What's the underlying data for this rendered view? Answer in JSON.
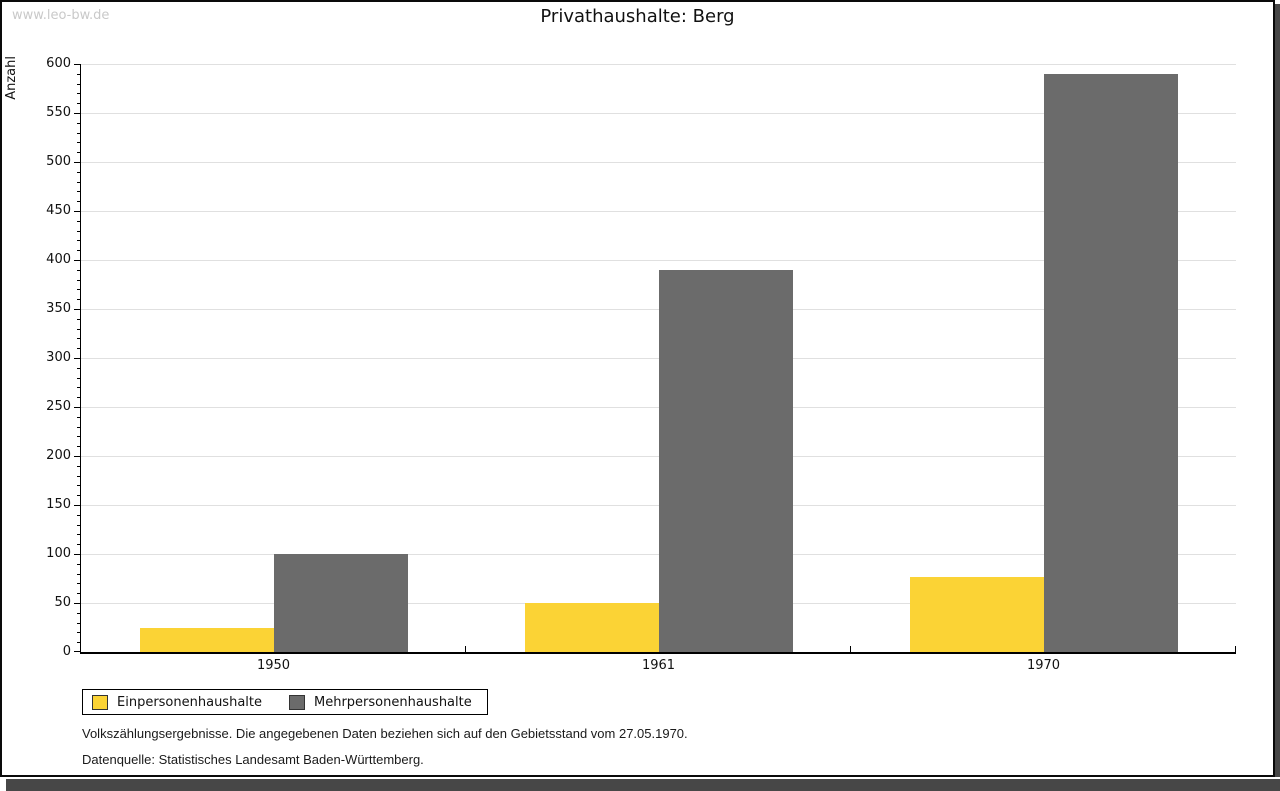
{
  "watermark": "www.leo-bw.de",
  "title": "Privathaushalte: Berg",
  "chart_data": {
    "type": "bar",
    "title": "Privathaushalte: Berg",
    "xlabel": "",
    "ylabel": "Anzahl",
    "categories": [
      "1950",
      "1961",
      "1970"
    ],
    "series": [
      {
        "name": "Einpersonenhaushalte",
        "color": "#FBD335",
        "values": [
          24,
          50,
          77
        ]
      },
      {
        "name": "Mehrpersonenhaushalte",
        "color": "#6B6B6B",
        "values": [
          100,
          390,
          590
        ]
      }
    ],
    "ylim": [
      0,
      600
    ],
    "ytick_step": 50,
    "yminor_step": 10,
    "grid": true,
    "legend_position": "bottom-left"
  },
  "footnotes": [
    "Volkszählungsergebnisse. Die angegebenen Daten beziehen sich auf den Gebietsstand vom 27.05.1970.",
    "Datenquelle: Statistisches Landesamt Baden-Württemberg."
  ]
}
